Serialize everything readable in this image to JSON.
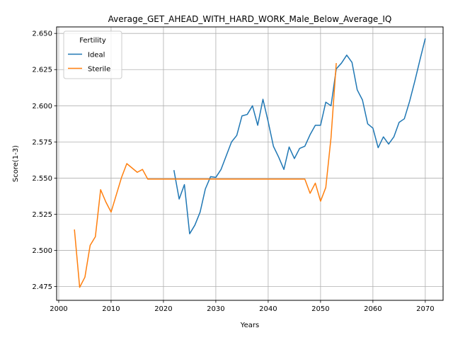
{
  "chart_data": {
    "type": "line",
    "title": "Average_GET_AHEAD_WITH_HARD_WORK_Male_Below_Average_IQ",
    "xlabel": "Years",
    "ylabel": "Score(1-3)",
    "xlim": [
      1999.6,
      2073.4
    ],
    "ylim": [
      2.4655,
      2.6545
    ],
    "xticks": [
      2000,
      2010,
      2020,
      2030,
      2040,
      2050,
      2060,
      2070
    ],
    "xtick_labels": [
      "2000",
      "2010",
      "2020",
      "2030",
      "2040",
      "2050",
      "2060",
      "2070"
    ],
    "yticks": [
      2.475,
      2.5,
      2.525,
      2.55,
      2.575,
      2.6,
      2.625,
      2.65
    ],
    "ytick_labels": [
      "2.475",
      "2.500",
      "2.525",
      "2.550",
      "2.575",
      "2.600",
      "2.625",
      "2.650"
    ],
    "grid": true,
    "legend": {
      "title": "Fertility",
      "position": "upper-left"
    },
    "series": [
      {
        "name": "Ideal",
        "color": "#1f77b4",
        "x": [
          2022,
          2023,
          2024,
          2025,
          2026,
          2027,
          2028,
          2029,
          2030,
          2031,
          2032,
          2033,
          2034,
          2035,
          2036,
          2037,
          2038,
          2039,
          2040,
          2041,
          2042,
          2043,
          2044,
          2045,
          2046,
          2047,
          2048,
          2049,
          2050,
          2051,
          2052,
          2053,
          2054,
          2055,
          2056,
          2057,
          2058,
          2059,
          2060,
          2061,
          2062,
          2063,
          2064,
          2065,
          2066,
          2067,
          2068,
          2069,
          2070
        ],
        "y": [
          2.5555,
          2.5355,
          2.5455,
          2.5115,
          2.5175,
          2.5265,
          2.5425,
          2.551,
          2.5505,
          2.556,
          2.5655,
          2.575,
          2.5795,
          2.593,
          2.594,
          2.6,
          2.5865,
          2.6045,
          2.589,
          2.572,
          2.5645,
          2.556,
          2.5715,
          2.5635,
          2.5705,
          2.572,
          2.58,
          2.5865,
          2.5865,
          2.6025,
          2.6,
          2.6255,
          2.6295,
          2.635,
          2.63,
          2.611,
          2.604,
          2.5875,
          2.5845,
          2.571,
          2.5785,
          2.5735,
          2.5785,
          2.5885,
          2.591,
          2.603,
          2.617,
          2.632,
          2.6465
        ]
      },
      {
        "name": "Sterile",
        "color": "#ff7f0e",
        "x": [
          2003,
          2004,
          2005,
          2006,
          2007,
          2008,
          2009,
          2010,
          2011,
          2012,
          2013,
          2014,
          2015,
          2016,
          2017,
          2018,
          2019,
          2020,
          2021,
          2022,
          2023,
          2024,
          2025,
          2026,
          2027,
          2028,
          2029,
          2030,
          2031,
          2032,
          2033,
          2034,
          2035,
          2036,
          2037,
          2038,
          2039,
          2040,
          2041,
          2042,
          2043,
          2044,
          2045,
          2046,
          2047,
          2048,
          2049,
          2050,
          2051,
          2052,
          2053
        ],
        "y": [
          2.5145,
          2.4745,
          2.4815,
          2.5035,
          2.5095,
          2.542,
          2.5335,
          2.5265,
          2.5385,
          2.5505,
          2.56,
          2.557,
          2.554,
          2.556,
          2.5493,
          2.5493,
          2.5493,
          2.5493,
          2.5493,
          2.5493,
          2.5493,
          2.5493,
          2.5493,
          2.5493,
          2.5493,
          2.5493,
          2.5493,
          2.5493,
          2.5493,
          2.5493,
          2.5493,
          2.5493,
          2.5493,
          2.5493,
          2.5493,
          2.5493,
          2.5493,
          2.5493,
          2.5493,
          2.5493,
          2.5493,
          2.5493,
          2.5493,
          2.5493,
          2.5493,
          2.5395,
          2.5465,
          2.534,
          2.5435,
          2.578,
          2.6295
        ]
      }
    ]
  }
}
